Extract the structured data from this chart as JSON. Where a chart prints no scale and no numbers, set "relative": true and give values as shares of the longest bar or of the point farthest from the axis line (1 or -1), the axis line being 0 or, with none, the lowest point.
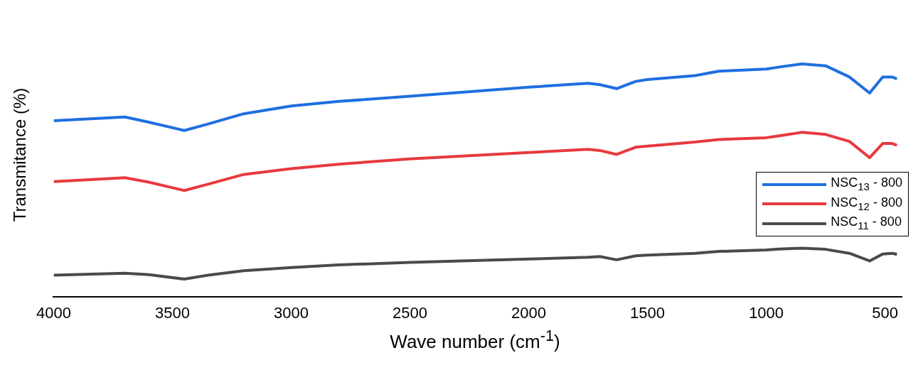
{
  "chart_data": {
    "type": "line",
    "relative": true,
    "xlabel": "Wave number (cm$^{-1}$)",
    "ylabel": "Transmitance (%)",
    "x": [
      4000,
      3700,
      3600,
      3450,
      3350,
      3200,
      3000,
      2800,
      2500,
      2000,
      1750,
      1700,
      1630,
      1550,
      1500,
      1300,
      1200,
      1000,
      950,
      850,
      750,
      650,
      565,
      510,
      470,
      450
    ],
    "xlim": [
      4000,
      430
    ],
    "xticks": [
      4000,
      3500,
      3000,
      2500,
      2000,
      1500,
      1000,
      500
    ],
    "grid": false,
    "legend": "right",
    "line_style": "solid",
    "marker": "none",
    "series": [
      {
        "name": "NSC$_{13}$ - 800",
        "color": "#1f6fe0",
        "values": [
          0.756,
          0.772,
          0.75,
          0.714,
          0.742,
          0.786,
          0.819,
          0.839,
          0.861,
          0.9,
          0.917,
          0.911,
          0.894,
          0.925,
          0.933,
          0.95,
          0.969,
          0.978,
          0.986,
          1,
          0.992,
          0.944,
          0.875,
          0.944,
          0.944,
          0.936
        ]
      },
      {
        "name": "NSC$_{12}$ - 800",
        "color": "#e8393f",
        "values": [
          0.494,
          0.511,
          0.492,
          0.456,
          0.483,
          0.525,
          0.55,
          0.569,
          0.592,
          0.619,
          0.633,
          0.628,
          0.611,
          0.642,
          0.647,
          0.664,
          0.675,
          0.683,
          0.69,
          0.706,
          0.697,
          0.667,
          0.597,
          0.658,
          0.658,
          0.65
        ]
      },
      {
        "name": "NSC$_{11}$ - 800",
        "color": "#4a4a4a",
        "values": [
          0.092,
          0.1,
          0.094,
          0.075,
          0.092,
          0.111,
          0.125,
          0.136,
          0.147,
          0.161,
          0.169,
          0.172,
          0.158,
          0.175,
          0.178,
          0.186,
          0.194,
          0.2,
          0.204,
          0.208,
          0.203,
          0.186,
          0.153,
          0.183,
          0.186,
          0.181
        ]
      }
    ]
  }
}
